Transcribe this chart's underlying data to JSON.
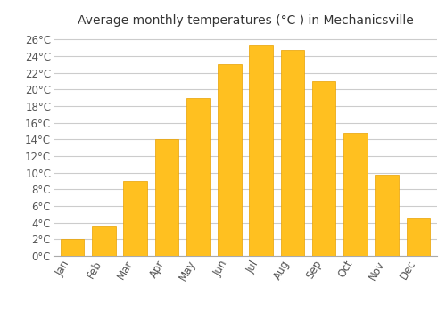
{
  "title": "Average monthly temperatures (°C ) in Mechanicsville",
  "months": [
    "Jan",
    "Feb",
    "Mar",
    "Apr",
    "May",
    "Jun",
    "Jul",
    "Aug",
    "Sep",
    "Oct",
    "Nov",
    "Dec"
  ],
  "values": [
    2.0,
    3.5,
    9.0,
    14.0,
    19.0,
    23.0,
    25.3,
    24.7,
    21.0,
    14.8,
    9.7,
    4.5
  ],
  "bar_color": "#FFC020",
  "bar_edge_color": "#E8A000",
  "background_color": "#ffffff",
  "plot_bg_color": "#ffffff",
  "grid_color": "#cccccc",
  "ylim": [
    0,
    27
  ],
  "yticks": [
    0,
    2,
    4,
    6,
    8,
    10,
    12,
    14,
    16,
    18,
    20,
    22,
    24,
    26
  ],
  "title_fontsize": 10,
  "tick_fontsize": 8.5,
  "bar_width": 0.75
}
